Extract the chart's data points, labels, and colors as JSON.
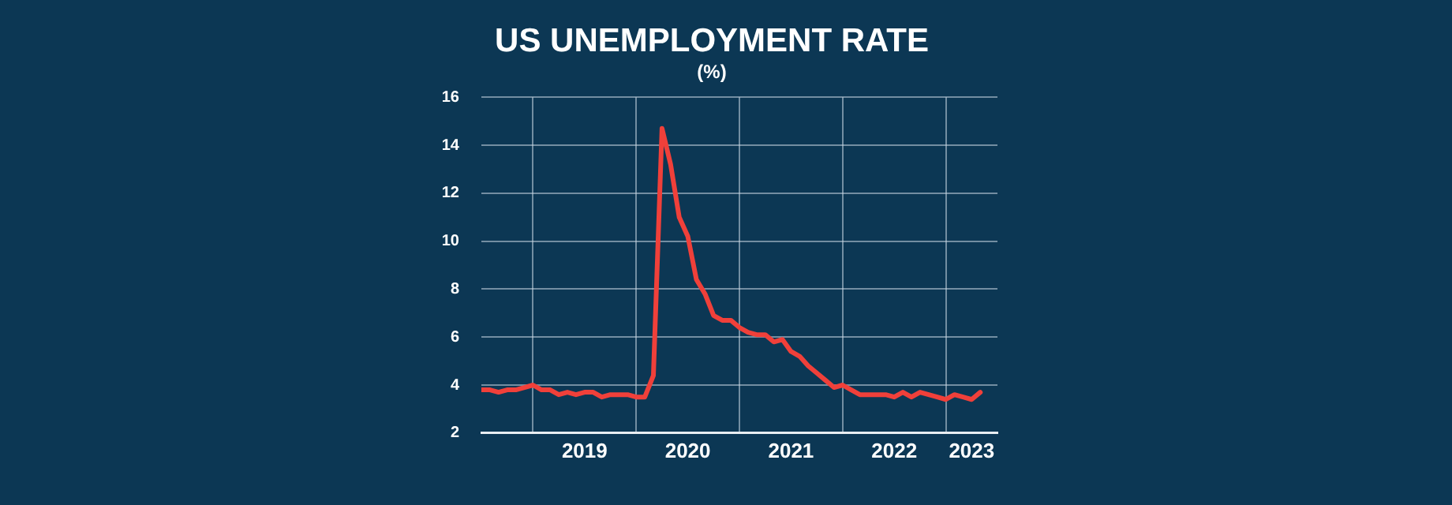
{
  "chart_data": {
    "type": "line",
    "title": "US UNEMPLOYMENT RATE",
    "subtitle": "(%)",
    "x": [
      "2018-07",
      "2018-08",
      "2018-09",
      "2018-10",
      "2018-11",
      "2018-12",
      "2019-01",
      "2019-02",
      "2019-03",
      "2019-04",
      "2019-05",
      "2019-06",
      "2019-07",
      "2019-08",
      "2019-09",
      "2019-10",
      "2019-11",
      "2019-12",
      "2020-01",
      "2020-02",
      "2020-03",
      "2020-04",
      "2020-05",
      "2020-06",
      "2020-07",
      "2020-08",
      "2020-09",
      "2020-10",
      "2020-11",
      "2020-12",
      "2021-01",
      "2021-02",
      "2021-03",
      "2021-04",
      "2021-05",
      "2021-06",
      "2021-07",
      "2021-08",
      "2021-09",
      "2021-10",
      "2021-11",
      "2021-12",
      "2022-01",
      "2022-02",
      "2022-03",
      "2022-04",
      "2022-05",
      "2022-06",
      "2022-07",
      "2022-08",
      "2022-09",
      "2022-10",
      "2022-11",
      "2022-12",
      "2023-01",
      "2023-02",
      "2023-03",
      "2023-04",
      "2023-05"
    ],
    "values": [
      3.8,
      3.8,
      3.7,
      3.8,
      3.8,
      3.9,
      4.0,
      3.8,
      3.8,
      3.6,
      3.7,
      3.6,
      3.7,
      3.7,
      3.5,
      3.6,
      3.6,
      3.6,
      3.5,
      3.5,
      4.4,
      14.7,
      13.2,
      11.0,
      10.2,
      8.4,
      7.8,
      6.9,
      6.7,
      6.7,
      6.4,
      6.2,
      6.1,
      6.1,
      5.8,
      5.9,
      5.4,
      5.2,
      4.8,
      4.5,
      4.2,
      3.9,
      4.0,
      3.8,
      3.6,
      3.6,
      3.6,
      3.6,
      3.5,
      3.7,
      3.5,
      3.7,
      3.6,
      3.5,
      3.4,
      3.6,
      3.5,
      3.4,
      3.7
    ],
    "color": "#f0403a",
    "xlim": [
      "2018-07",
      "2023-07"
    ],
    "xticks": [
      {
        "value": "2019-01",
        "label": null
      },
      {
        "value": "2019-07",
        "label": "2019"
      },
      {
        "value": "2020-01",
        "label": null
      },
      {
        "value": "2020-07",
        "label": "2020"
      },
      {
        "value": "2021-01",
        "label": null
      },
      {
        "value": "2021-07",
        "label": "2021"
      },
      {
        "value": "2022-01",
        "label": null
      },
      {
        "value": "2022-07",
        "label": "2022"
      },
      {
        "value": "2023-01",
        "label": null
      },
      {
        "value": "2023-04",
        "label": "2023"
      }
    ],
    "ylim": [
      2,
      16
    ],
    "yticks": [
      2,
      4,
      6,
      8,
      10,
      12,
      14,
      16
    ],
    "grid": true
  }
}
